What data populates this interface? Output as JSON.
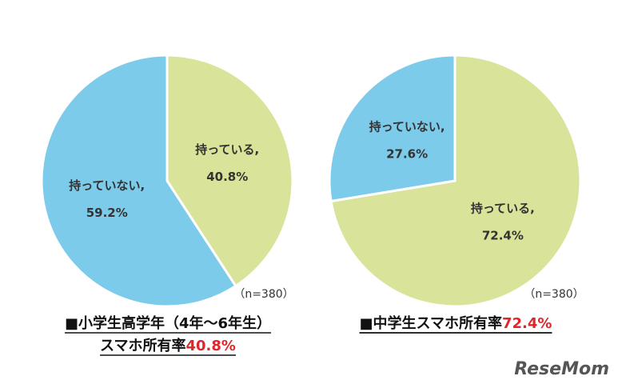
{
  "chart_data": [
    {
      "type": "pie",
      "title": "■小学生高学年（4年〜6年生）",
      "subtitle": "スマホ所有率",
      "highlight": "40.8%",
      "categories": [
        "持っている,",
        "持っていない,"
      ],
      "values": [
        40.8,
        59.2
      ],
      "value_labels": [
        "40.8%",
        "59.2%"
      ],
      "colors": [
        "#d9e49a",
        "#7ccbea"
      ],
      "annotation": "（n=380）"
    },
    {
      "type": "pie",
      "title": "■中学生スマホ所有率",
      "highlight": "72.4%",
      "categories": [
        "持っている,",
        "持っていない,"
      ],
      "values": [
        72.4,
        27.6
      ],
      "value_labels": [
        "72.4%",
        "27.6%"
      ],
      "colors": [
        "#d9e49a",
        "#7ccbea"
      ],
      "annotation": "（n=380）"
    }
  ],
  "watermark": "ReseMom"
}
